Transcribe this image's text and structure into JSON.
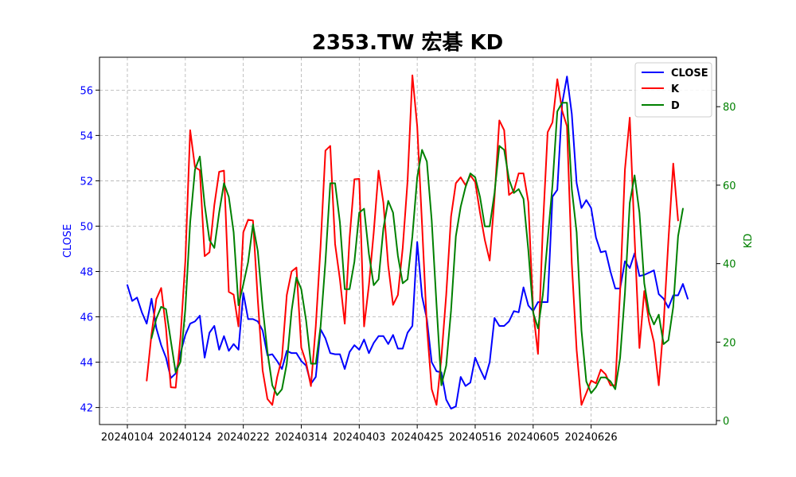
{
  "chart_data": {
    "type": "line",
    "title": "2353.TW 宏碁 KD",
    "y_left_label": "CLOSE",
    "y_right_label": "KD",
    "x_tick_labels": [
      "20240104",
      "20240124",
      "20240222",
      "20240314",
      "20240403",
      "20240425",
      "20240516",
      "20240605",
      "20240626"
    ],
    "x_tick_indices": [
      0,
      12,
      24,
      36,
      48,
      60,
      72,
      84,
      96
    ],
    "y_left_ticks": [
      42,
      44,
      46,
      48,
      50,
      52,
      54,
      56
    ],
    "y_left_range": [
      41.25,
      57.45
    ],
    "y_right_ticks": [
      0,
      20,
      40,
      60,
      80
    ],
    "y_right_range": [
      -1.0,
      92.6
    ],
    "grid": true,
    "legend_position": "top-right",
    "series": [
      {
        "name": "CLOSE",
        "axis": "left",
        "color": "#0000ff",
        "values": [
          47.4,
          46.7,
          46.85,
          46.2,
          45.7,
          46.8,
          45.5,
          44.75,
          44.2,
          43.3,
          43.5,
          44.4,
          45.2,
          45.7,
          45.8,
          46.05,
          44.2,
          45.3,
          45.6,
          44.55,
          45.15,
          44.5,
          44.8,
          44.55,
          47.05,
          45.9,
          45.9,
          45.8,
          45.4,
          44.3,
          44.35,
          44.05,
          43.7,
          44.5,
          44.4,
          44.4,
          44.05,
          43.85,
          43.05,
          43.35,
          45.45,
          45.05,
          44.4,
          44.35,
          44.35,
          43.7,
          44.45,
          44.75,
          44.55,
          45.0,
          44.4,
          44.85,
          45.15,
          45.15,
          44.8,
          45.2,
          44.6,
          44.6,
          45.3,
          45.6,
          49.3,
          46.9,
          45.9,
          44.0,
          43.6,
          43.55,
          42.35,
          41.95,
          42.05,
          43.35,
          42.95,
          43.1,
          44.2,
          43.7,
          43.25,
          44.0,
          45.95,
          45.6,
          45.6,
          45.8,
          46.25,
          46.2,
          47.3,
          46.5,
          46.25,
          46.65,
          46.65,
          46.65,
          51.3,
          51.6,
          55.4,
          56.6,
          54.95,
          51.9,
          50.8,
          51.15,
          50.8,
          49.5,
          48.85,
          48.9,
          48.0,
          47.25,
          47.25,
          48.45,
          48.15,
          48.8,
          47.8,
          47.85,
          47.95,
          48.05,
          47.0,
          46.8,
          46.4,
          46.95,
          46.95,
          47.45,
          46.8
        ]
      },
      {
        "name": "K",
        "axis": "right",
        "color": "#ff0000",
        "start_index": 4,
        "values": [
          10.2,
          22.0,
          31.0,
          33.8,
          23.5,
          8.5,
          8.4,
          21.3,
          40.7,
          74.0,
          64.6,
          63.8,
          41.9,
          42.9,
          54.9,
          63.4,
          63.7,
          32.8,
          32.1,
          24.0,
          48.0,
          51.2,
          51.0,
          30.8,
          12.8,
          5.5,
          4.0,
          11.0,
          16.0,
          32.0,
          38.0,
          39.0,
          18.6,
          14.8,
          8.8,
          24.0,
          44.5,
          68.8,
          70.0,
          45.0,
          36.0,
          24.7,
          46.5,
          61.5,
          61.6,
          24.0,
          34.5,
          48.0,
          63.7,
          55.5,
          39.5,
          29.5,
          32.0,
          44.0,
          61.0,
          88.0,
          75.0,
          50.0,
          24.0,
          8.0,
          4.0,
          16.0,
          32.0,
          52.0,
          60.5,
          62.0,
          60.0,
          62.5,
          60.8,
          53.0,
          46.0,
          40.8,
          56.8,
          76.5,
          74.0,
          57.5,
          58.5,
          63.0,
          63.0,
          55.7,
          28.0,
          17.0,
          49.0,
          73.5,
          76.0,
          87.0,
          79.0,
          75.0,
          40.0,
          18.0,
          4.0,
          7.0,
          10.2,
          9.5,
          13.0,
          11.8,
          9.0,
          9.0,
          33.0,
          64.0,
          77.2,
          46.5,
          18.5,
          33.0,
          25.2,
          20.0,
          9.0,
          24.5,
          46.0,
          65.5,
          51.0
        ]
      },
      {
        "name": "D",
        "axis": "right",
        "color": "#008000",
        "start_index": 5,
        "values": [
          21.0,
          26.0,
          29.0,
          28.4,
          20.3,
          12.3,
          15.0,
          28.4,
          50.5,
          64.0,
          67.3,
          55.0,
          46.0,
          44.0,
          53.0,
          60.5,
          57.0,
          48.0,
          29.4,
          34.7,
          40.4,
          50.0,
          43.2,
          29.0,
          17.5,
          9.0,
          6.5,
          8.0,
          14.5,
          28.0,
          36.5,
          33.5,
          25.5,
          14.5,
          14.5,
          24.0,
          40.5,
          60.5,
          60.5,
          50.5,
          33.5,
          33.5,
          40.5,
          53.0,
          54.0,
          42.5,
          34.5,
          36.0,
          49.0,
          56.0,
          53.0,
          42.0,
          35.0,
          36.0,
          47.0,
          62.0,
          69.0,
          66.0,
          51.0,
          29.5,
          9.0,
          14.0,
          28.0,
          47.0,
          54.5,
          59.5,
          63.0,
          62.0,
          57.0,
          49.5,
          49.5,
          58.0,
          70.0,
          69.0,
          61.5,
          58.0,
          59.0,
          56.5,
          43.5,
          27.5,
          23.5,
          32.0,
          46.0,
          60.0,
          78.8,
          81.0,
          81.0,
          59.0,
          48.0,
          23.0,
          10.0,
          7.0,
          8.5,
          11.0,
          11.0,
          10.0,
          8.0,
          16.0,
          32.5,
          55.5,
          62.5,
          53.0,
          35.0,
          27.5,
          24.5,
          27.0,
          19.5,
          20.5,
          29.0,
          47.0,
          54.0
        ]
      }
    ]
  }
}
